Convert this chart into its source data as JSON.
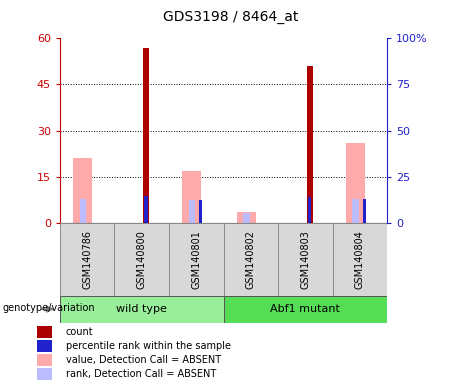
{
  "title": "GDS3198 / 8464_at",
  "samples": [
    "GSM140786",
    "GSM140800",
    "GSM140801",
    "GSM140802",
    "GSM140803",
    "GSM140804"
  ],
  "count_values": [
    0,
    57,
    0,
    0,
    51,
    0
  ],
  "percentile_values": [
    0,
    14.5,
    12.5,
    0,
    14,
    13
  ],
  "value_absent": [
    35,
    0,
    28,
    6,
    0,
    43
  ],
  "rank_absent": [
    13,
    0,
    12.5,
    5.5,
    0,
    13
  ],
  "left_ylim": [
    0,
    60
  ],
  "right_ylim": [
    0,
    100
  ],
  "left_yticks": [
    0,
    15,
    30,
    45,
    60
  ],
  "right_yticks": [
    0,
    25,
    50,
    75,
    100
  ],
  "right_yticklabels": [
    "0",
    "25",
    "50",
    "75",
    "100%"
  ],
  "count_color": "#aa0000",
  "percentile_color": "#2222cc",
  "value_absent_color": "#ffaaaa",
  "rank_absent_color": "#bbbbff",
  "left_ylabel_color": "#cc0000",
  "right_ylabel_color": "#2222cc",
  "grid_yticks": [
    15,
    30,
    45
  ],
  "groups_info": [
    {
      "label": "wild type",
      "start": 0,
      "end": 2,
      "color": "#99ee99"
    },
    {
      "label": "Abf1 mutant",
      "start": 3,
      "end": 5,
      "color": "#55dd55"
    }
  ],
  "bg_color": "#d8d8d8",
  "legend": [
    {
      "color": "#aa0000",
      "label": "count"
    },
    {
      "color": "#2222cc",
      "label": "percentile rank within the sample"
    },
    {
      "color": "#ffaaaa",
      "label": "value, Detection Call = ABSENT"
    },
    {
      "color": "#bbbbff",
      "label": "rank, Detection Call = ABSENT"
    }
  ]
}
